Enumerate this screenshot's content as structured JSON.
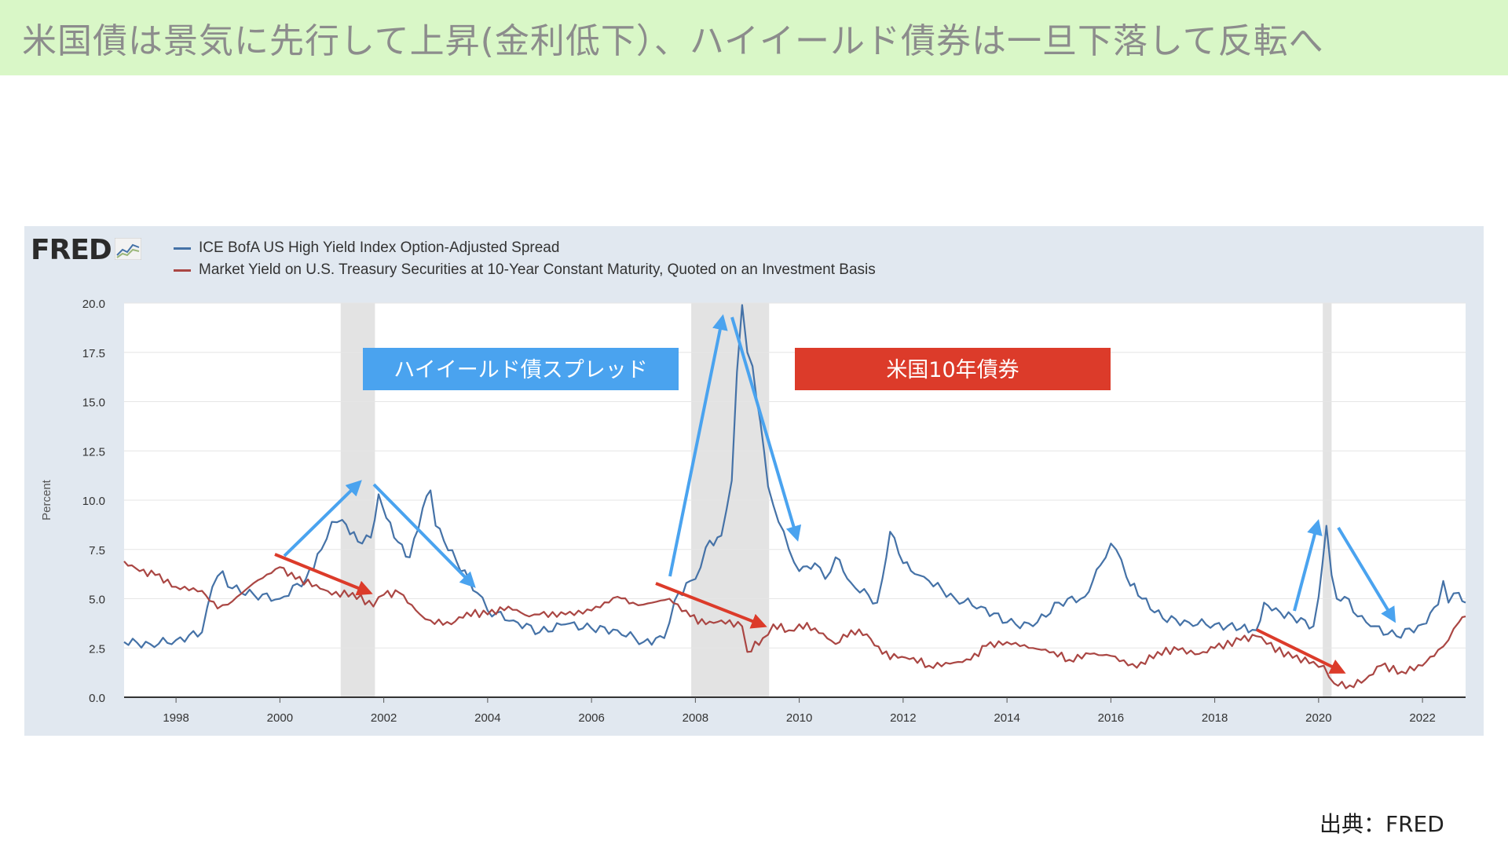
{
  "banner": {
    "title": "米国債は景気に先行して上昇(金利低下）、ハイイールド債券は一旦下落して反転へ"
  },
  "fred_logo": {
    "text": "FRED"
  },
  "legend": [
    {
      "label": "ICE BofA US High Yield Index Option-Adjusted Spread",
      "color": "#4572a7"
    },
    {
      "label": "Market Yield on U.S. Treasury Securities at 10-Year Constant Maturity, Quoted on an Investment Basis",
      "color": "#aa4643"
    }
  ],
  "callouts": {
    "spread_label": "ハイイールド債スプレッド",
    "spread_color": "#4aa3ef",
    "treasury_label": "米国10年債券",
    "treasury_color": "#dc3b2a"
  },
  "source": "出典：FRED",
  "chart_data": {
    "type": "line",
    "ylabel": "Percent",
    "ylim": [
      0,
      20
    ],
    "yticks": [
      "0.0",
      "2.5",
      "5.0",
      "7.5",
      "10.0",
      "12.5",
      "15.0",
      "17.5",
      "20.0"
    ],
    "xlim": [
      1997.0,
      2022.83
    ],
    "xticks": [
      "1998",
      "2000",
      "2002",
      "2004",
      "2006",
      "2008",
      "2010",
      "2012",
      "2014",
      "2016",
      "2018",
      "2020",
      "2022"
    ],
    "grid": "horizontal",
    "recessions": [
      [
        2001.17,
        2001.83
      ],
      [
        2007.92,
        2009.42
      ],
      [
        2020.08,
        2020.25
      ]
    ],
    "series": [
      {
        "name": "ICE BofA US High Yield Index Option-Adjusted Spread",
        "color": "#4572a7",
        "x": [
          1997.0,
          1997.5,
          1998.0,
          1998.5,
          1998.7,
          1998.9,
          1999.0,
          1999.5,
          2000.0,
          2000.5,
          2000.8,
          2001.0,
          2001.2,
          2001.5,
          2001.75,
          2001.9,
          2002.2,
          2002.5,
          2002.75,
          2002.9,
          2003.0,
          2003.4,
          2003.8,
          2004.0,
          2004.5,
          2005.0,
          2005.5,
          2006.0,
          2006.5,
          2007.0,
          2007.4,
          2007.6,
          2007.9,
          2008.0,
          2008.2,
          2008.5,
          2008.7,
          2008.8,
          2008.9,
          2009.0,
          2009.1,
          2009.25,
          2009.4,
          2009.6,
          2009.8,
          2010.0,
          2010.3,
          2010.5,
          2010.7,
          2011.0,
          2011.5,
          2011.6,
          2011.75,
          2012.0,
          2012.3,
          2012.5,
          2013.0,
          2013.5,
          2014.0,
          2014.5,
          2015.0,
          2015.5,
          2015.8,
          2016.0,
          2016.1,
          2016.3,
          2016.6,
          2017.0,
          2017.5,
          2018.0,
          2018.5,
          2018.8,
          2018.95,
          2019.1,
          2019.5,
          2019.9,
          2020.0,
          2020.15,
          2020.25,
          2020.35,
          2020.5,
          2020.75,
          2021.0,
          2021.5,
          2022.0,
          2022.3,
          2022.4,
          2022.5,
          2022.7,
          2022.83
        ],
        "y": [
          2.8,
          2.7,
          2.9,
          3.3,
          5.6,
          6.4,
          5.6,
          5.2,
          5.0,
          6.0,
          7.5,
          8.9,
          9.0,
          7.9,
          8.1,
          10.3,
          8.1,
          7.1,
          9.6,
          10.5,
          8.7,
          6.9,
          5.3,
          4.4,
          3.9,
          3.3,
          3.7,
          3.5,
          3.4,
          2.8,
          3.0,
          4.9,
          5.9,
          6.0,
          7.6,
          8.2,
          11.0,
          16.5,
          19.9,
          17.5,
          16.8,
          14.0,
          10.7,
          8.9,
          7.5,
          6.4,
          6.8,
          6.0,
          7.1,
          5.8,
          4.8,
          6.0,
          8.4,
          6.8,
          6.2,
          5.9,
          5.0,
          4.6,
          3.8,
          3.6,
          4.8,
          5.1,
          6.7,
          7.8,
          7.5,
          6.1,
          5.0,
          4.0,
          3.8,
          3.7,
          3.5,
          3.4,
          4.8,
          4.4,
          4.1,
          3.6,
          5.1,
          8.7,
          6.2,
          5.0,
          5.1,
          4.1,
          3.6,
          3.1,
          3.7,
          4.7,
          5.9,
          4.8,
          5.3,
          4.8
        ]
      },
      {
        "name": "Market Yield on U.S. Treasury Securities at 10-Year Constant Maturity, Quoted on an Investment Basis",
        "color": "#aa4643",
        "x": [
          1997.0,
          1997.3,
          1997.6,
          1998.0,
          1998.5,
          1998.8,
          1999.0,
          1999.5,
          2000.0,
          2000.3,
          2000.7,
          2001.0,
          2001.4,
          2001.8,
          2002.0,
          2002.3,
          2002.7,
          2002.9,
          2003.3,
          2003.6,
          2004.0,
          2004.4,
          2004.8,
          2005.0,
          2005.5,
          2006.0,
          2006.5,
          2006.8,
          2007.0,
          2007.5,
          2007.9,
          2008.2,
          2008.5,
          2008.9,
          2009.0,
          2009.3,
          2009.5,
          2009.8,
          2010.0,
          2010.3,
          2010.7,
          2011.0,
          2011.3,
          2011.6,
          2011.9,
          2012.2,
          2012.5,
          2012.9,
          2013.3,
          2013.6,
          2014.0,
          2014.5,
          2014.9,
          2015.2,
          2015.6,
          2016.0,
          2016.5,
          2016.9,
          2017.3,
          2017.7,
          2018.0,
          2018.5,
          2018.8,
          2019.0,
          2019.5,
          2019.9,
          2020.1,
          2020.3,
          2020.6,
          2020.9,
          2021.2,
          2021.6,
          2022.0,
          2022.3,
          2022.5,
          2022.7,
          2022.83
        ],
        "y": [
          6.9,
          6.4,
          6.2,
          5.6,
          5.4,
          4.5,
          4.7,
          5.8,
          6.6,
          6.0,
          5.7,
          5.2,
          5.3,
          4.6,
          5.2,
          5.3,
          4.2,
          3.9,
          3.7,
          4.3,
          4.2,
          4.6,
          4.1,
          4.2,
          4.2,
          4.4,
          5.1,
          4.8,
          4.7,
          5.0,
          4.1,
          3.7,
          3.9,
          3.6,
          2.3,
          3.0,
          3.7,
          3.4,
          3.7,
          3.5,
          2.7,
          3.4,
          3.2,
          2.2,
          2.0,
          2.0,
          1.6,
          1.7,
          1.9,
          2.6,
          2.8,
          2.5,
          2.3,
          1.9,
          2.2,
          2.1,
          1.5,
          2.3,
          2.4,
          2.2,
          2.5,
          2.9,
          3.1,
          2.7,
          2.0,
          1.8,
          1.6,
          0.7,
          0.6,
          0.9,
          1.6,
          1.3,
          1.6,
          2.4,
          2.9,
          3.8,
          4.1
        ]
      }
    ]
  }
}
